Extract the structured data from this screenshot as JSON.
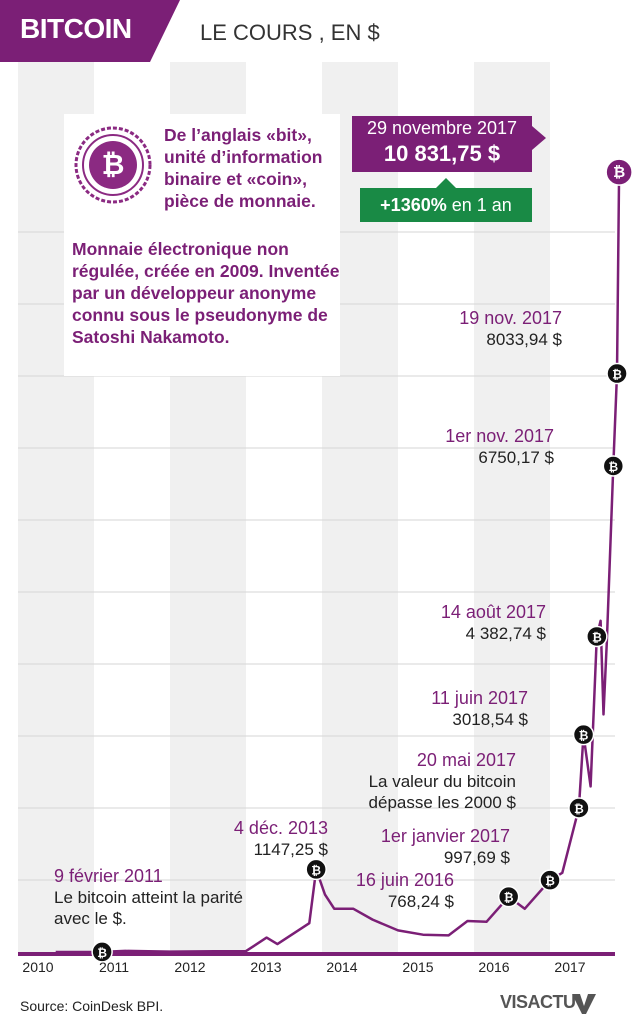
{
  "header": {
    "title": "BITCOIN",
    "subtitle": "LE COURS , EN $"
  },
  "info": {
    "definition": "De l’anglais «bit», unité d’information binaire et «coin», pièce de monnaie.",
    "description": "Monnaie électronique non régulée, créée en 2009. Inventée par un développeur anonyme connu sous le pseudonyme de Satoshi Nakamoto."
  },
  "peak": {
    "date": "29 novembre 2017",
    "value": "10 831,75 $"
  },
  "growth": {
    "pct": "+1360%",
    "label": "en 1 an"
  },
  "annotations": [
    {
      "id": "a2011",
      "date": "9 février 2011",
      "value": "Le bitcoin atteint la parité avec le $."
    },
    {
      "id": "a2013",
      "date": "4 déc. 2013",
      "value": "1147,25 $"
    },
    {
      "id": "a2016j",
      "date": "16 juin 2016",
      "value": "768,24 $"
    },
    {
      "id": "a2017jan",
      "date": "1er janvier 2017",
      "value": "997,69 $"
    },
    {
      "id": "a2017mai",
      "date": "20 mai 2017",
      "value": "La valeur du bitcoin dépasse les 2000 $"
    },
    {
      "id": "a2017jun",
      "date": "11 juin 2017",
      "value": "3018,54 $"
    },
    {
      "id": "a2017aou",
      "date": "14 août 2017",
      "value": "4 382,74 $"
    },
    {
      "id": "a2017nov1",
      "date": "1er nov. 2017",
      "value": "6750,17 $"
    },
    {
      "id": "a2017nov19",
      "date": "19 nov. 2017",
      "value": "8033,94 $"
    }
  ],
  "footer": {
    "source": "Source: CoinDesk BPI.",
    "brand": "VISACTU"
  },
  "colors": {
    "accent": "#7b1f76",
    "growth": "#198a45",
    "band": "#f0f0f0"
  },
  "chart_data": {
    "type": "line",
    "title": "BITCOIN",
    "subtitle": "LE COURS , EN $",
    "x_ticks": [
      "2010",
      "2011",
      "2012",
      "2013",
      "2014",
      "2015",
      "2016",
      "2017"
    ],
    "ylim": [
      0,
      11000
    ],
    "grid": true,
    "series": [
      {
        "x": [
          "2010-07-01",
          "2011-02-09",
          "2011-06-01",
          "2012-01-01",
          "2012-08-01",
          "2013-01-01",
          "2013-04-10",
          "2013-06-01",
          "2013-11-01",
          "2013-12-04",
          "2014-01-15",
          "2014-03-01",
          "2014-06-01",
          "2014-09-01",
          "2015-01-01",
          "2015-05-01",
          "2015-09-01",
          "2015-12-01",
          "2016-03-01",
          "2016-06-16",
          "2016-09-01",
          "2017-01-01",
          "2017-03-01",
          "2017-05-20",
          "2017-06-11",
          "2017-07-15",
          "2017-08-14",
          "2017-09-01",
          "2017-09-15",
          "2017-10-01",
          "2017-11-01",
          "2017-11-19",
          "2017-11-29"
        ],
        "y": [
          0.06,
          1,
          15,
          5,
          10,
          13,
          200,
          110,
          400,
          1147.25,
          800,
          600,
          600,
          450,
          300,
          240,
          230,
          430,
          420,
          768.24,
          600,
          997.69,
          1100,
          2000,
          3018.54,
          2300,
          4382.74,
          4600,
          3300,
          4300,
          6750.17,
          8033.94,
          10831.75
        ]
      }
    ]
  }
}
